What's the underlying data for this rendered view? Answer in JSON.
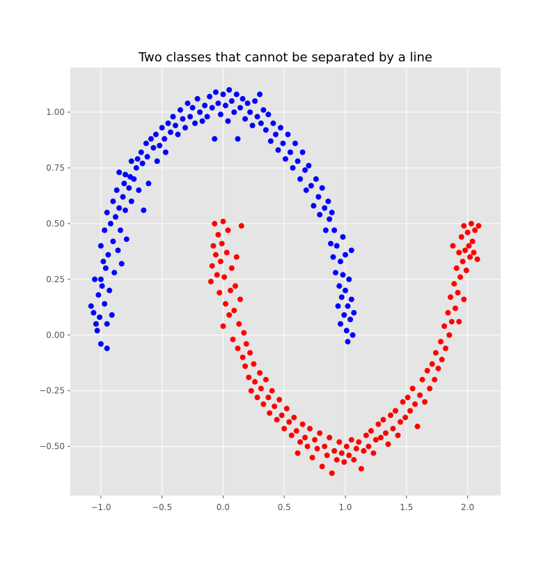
{
  "chart_data": {
    "type": "scatter",
    "title": "Two classes that cannot be separated by a line",
    "xlabel": "",
    "ylabel": "",
    "xlim": [
      -1.25,
      2.27
    ],
    "ylim": [
      -0.72,
      1.2
    ],
    "xticks": [
      -1.0,
      -0.5,
      0.0,
      0.5,
      1.0,
      1.5,
      2.0
    ],
    "xtick_labels": [
      "−1.0",
      "−0.5",
      "0.0",
      "0.5",
      "1.0",
      "1.5",
      "2.0"
    ],
    "yticks": [
      -0.5,
      -0.25,
      0.0,
      0.25,
      0.5,
      0.75,
      1.0
    ],
    "ytick_labels": [
      "−0.50",
      "−0.25",
      "0.00",
      "0.25",
      "0.50",
      "0.75",
      "1.00"
    ],
    "grid": true,
    "style": "ggplot",
    "legend": "none",
    "series": [
      {
        "color": "#0000ff",
        "points": [
          [
            -1.08,
            0.13
          ],
          [
            -1.06,
            0.1
          ],
          [
            -1.05,
            0.25
          ],
          [
            -1.04,
            0.05
          ],
          [
            -1.03,
            0.02
          ],
          [
            -1.02,
            0.18
          ],
          [
            -1.01,
            0.08
          ],
          [
            -1.0,
            0.4
          ],
          [
            -1.0,
            0.25
          ],
          [
            -1.0,
            -0.04
          ],
          [
            -0.99,
            0.22
          ],
          [
            -0.98,
            0.33
          ],
          [
            -0.97,
            0.47
          ],
          [
            -0.97,
            0.14
          ],
          [
            -0.96,
            0.3
          ],
          [
            -0.95,
            0.55
          ],
          [
            -0.95,
            0.05
          ],
          [
            -0.95,
            -0.06
          ],
          [
            -0.94,
            0.36
          ],
          [
            -0.93,
            0.2
          ],
          [
            -0.92,
            0.5
          ],
          [
            -0.91,
            0.09
          ],
          [
            -0.9,
            0.6
          ],
          [
            -0.9,
            0.42
          ],
          [
            -0.89,
            0.28
          ],
          [
            -0.88,
            0.53
          ],
          [
            -0.87,
            0.65
          ],
          [
            -0.86,
            0.38
          ],
          [
            -0.85,
            0.73
          ],
          [
            -0.85,
            0.57
          ],
          [
            -0.84,
            0.47
          ],
          [
            -0.83,
            0.32
          ],
          [
            -0.82,
            0.62
          ],
          [
            -0.81,
            0.68
          ],
          [
            -0.8,
            0.72
          ],
          [
            -0.8,
            0.56
          ],
          [
            -0.79,
            0.43
          ],
          [
            -0.77,
            0.66
          ],
          [
            -0.76,
            0.71
          ],
          [
            -0.75,
            0.78
          ],
          [
            -0.75,
            0.6
          ],
          [
            -0.73,
            0.7
          ],
          [
            -0.71,
            0.75
          ],
          [
            -0.7,
            0.79
          ],
          [
            -0.69,
            0.65
          ],
          [
            -0.67,
            0.82
          ],
          [
            -0.66,
            0.77
          ],
          [
            -0.65,
            0.56
          ],
          [
            -0.63,
            0.86
          ],
          [
            -0.62,
            0.8
          ],
          [
            -0.61,
            0.68
          ],
          [
            -0.59,
            0.88
          ],
          [
            -0.57,
            0.84
          ],
          [
            -0.55,
            0.9
          ],
          [
            -0.54,
            0.78
          ],
          [
            -0.52,
            0.85
          ],
          [
            -0.5,
            0.93
          ],
          [
            -0.48,
            0.88
          ],
          [
            -0.47,
            0.82
          ],
          [
            -0.45,
            0.95
          ],
          [
            -0.43,
            0.91
          ],
          [
            -0.41,
            0.98
          ],
          [
            -0.39,
            0.94
          ],
          [
            -0.37,
            0.9
          ],
          [
            -0.35,
            1.01
          ],
          [
            -0.33,
            0.97
          ],
          [
            -0.31,
            0.93
          ],
          [
            -0.29,
            1.04
          ],
          [
            -0.27,
            0.98
          ],
          [
            -0.25,
            1.02
          ],
          [
            -0.23,
            0.95
          ],
          [
            -0.21,
            1.06
          ],
          [
            -0.19,
            1.0
          ],
          [
            -0.17,
            0.96
          ],
          [
            -0.15,
            1.03
          ],
          [
            -0.13,
            0.98
          ],
          [
            -0.11,
            1.07
          ],
          [
            -0.09,
            1.02
          ],
          [
            -0.07,
            0.88
          ],
          [
            -0.06,
            1.09
          ],
          [
            -0.04,
            1.04
          ],
          [
            -0.02,
            0.99
          ],
          [
            0.0,
            1.08
          ],
          [
            0.02,
            1.03
          ],
          [
            0.04,
            0.96
          ],
          [
            0.05,
            1.1
          ],
          [
            0.07,
            1.05
          ],
          [
            0.09,
            1.0
          ],
          [
            0.11,
            1.08
          ],
          [
            0.12,
            0.88
          ],
          [
            0.14,
            1.02
          ],
          [
            0.16,
            1.06
          ],
          [
            0.18,
            0.97
          ],
          [
            0.2,
            1.04
          ],
          [
            0.22,
            1.0
          ],
          [
            0.24,
            0.94
          ],
          [
            0.26,
            1.05
          ],
          [
            0.28,
            0.98
          ],
          [
            0.3,
            1.08
          ],
          [
            0.31,
            0.95
          ],
          [
            0.33,
            1.01
          ],
          [
            0.35,
            0.92
          ],
          [
            0.37,
            0.99
          ],
          [
            0.39,
            0.87
          ],
          [
            0.41,
            0.95
          ],
          [
            0.43,
            0.9
          ],
          [
            0.45,
            0.83
          ],
          [
            0.47,
            0.93
          ],
          [
            0.49,
            0.86
          ],
          [
            0.51,
            0.79
          ],
          [
            0.53,
            0.9
          ],
          [
            0.55,
            0.82
          ],
          [
            0.57,
            0.75
          ],
          [
            0.59,
            0.86
          ],
          [
            0.61,
            0.78
          ],
          [
            0.63,
            0.7
          ],
          [
            0.65,
            0.82
          ],
          [
            0.67,
            0.74
          ],
          [
            0.68,
            0.65
          ],
          [
            0.7,
            0.76
          ],
          [
            0.72,
            0.67
          ],
          [
            0.74,
            0.58
          ],
          [
            0.76,
            0.7
          ],
          [
            0.78,
            0.62
          ],
          [
            0.79,
            0.54
          ],
          [
            0.81,
            0.66
          ],
          [
            0.83,
            0.57
          ],
          [
            0.84,
            0.47
          ],
          [
            0.86,
            0.6
          ],
          [
            0.87,
            0.52
          ],
          [
            0.88,
            0.41
          ],
          [
            0.89,
            0.55
          ],
          [
            0.9,
            0.35
          ],
          [
            0.91,
            0.47
          ],
          [
            0.92,
            0.28
          ],
          [
            0.93,
            0.4
          ],
          [
            0.94,
            0.13
          ],
          [
            0.95,
            0.22
          ],
          [
            0.96,
            0.33
          ],
          [
            0.96,
            0.05
          ],
          [
            0.97,
            0.17
          ],
          [
            0.98,
            0.27
          ],
          [
            0.98,
            0.44
          ],
          [
            0.99,
            0.09
          ],
          [
            1.0,
            0.2
          ],
          [
            1.0,
            0.36
          ],
          [
            1.01,
            0.02
          ],
          [
            1.02,
            0.13
          ],
          [
            1.02,
            -0.03
          ],
          [
            1.03,
            0.25
          ],
          [
            1.04,
            0.07
          ],
          [
            1.05,
            0.16
          ],
          [
            1.05,
            0.38
          ],
          [
            1.06,
            0.0
          ],
          [
            1.07,
            0.1
          ]
        ]
      },
      {
        "color": "#ff0000",
        "points": [
          [
            -0.1,
            0.24
          ],
          [
            -0.09,
            0.31
          ],
          [
            -0.08,
            0.4
          ],
          [
            -0.07,
            0.5
          ],
          [
            -0.06,
            0.36
          ],
          [
            -0.05,
            0.27
          ],
          [
            -0.04,
            0.45
          ],
          [
            -0.03,
            0.19
          ],
          [
            -0.02,
            0.33
          ],
          [
            -0.01,
            0.41
          ],
          [
            0.0,
            0.04
          ],
          [
            0.0,
            0.51
          ],
          [
            0.01,
            0.26
          ],
          [
            0.02,
            0.14
          ],
          [
            0.03,
            0.37
          ],
          [
            0.04,
            0.47
          ],
          [
            0.05,
            0.09
          ],
          [
            0.06,
            0.2
          ],
          [
            0.07,
            0.3
          ],
          [
            0.08,
            -0.02
          ],
          [
            0.09,
            0.11
          ],
          [
            0.1,
            0.22
          ],
          [
            0.11,
            0.35
          ],
          [
            0.12,
            -0.06
          ],
          [
            0.13,
            0.05
          ],
          [
            0.14,
            0.16
          ],
          [
            0.15,
            0.49
          ],
          [
            0.16,
            -0.1
          ],
          [
            0.17,
            0.01
          ],
          [
            0.18,
            -0.14
          ],
          [
            0.19,
            -0.04
          ],
          [
            0.21,
            -0.19
          ],
          [
            0.22,
            -0.08
          ],
          [
            0.23,
            -0.25
          ],
          [
            0.25,
            -0.13
          ],
          [
            0.26,
            -0.21
          ],
          [
            0.28,
            -0.28
          ],
          [
            0.3,
            -0.17
          ],
          [
            0.31,
            -0.24
          ],
          [
            0.33,
            -0.31
          ],
          [
            0.35,
            -0.2
          ],
          [
            0.37,
            -0.28
          ],
          [
            0.38,
            -0.35
          ],
          [
            0.4,
            -0.25
          ],
          [
            0.42,
            -0.32
          ],
          [
            0.44,
            -0.38
          ],
          [
            0.46,
            -0.29
          ],
          [
            0.48,
            -0.36
          ],
          [
            0.5,
            -0.42
          ],
          [
            0.52,
            -0.33
          ],
          [
            0.54,
            -0.39
          ],
          [
            0.56,
            -0.45
          ],
          [
            0.58,
            -0.37
          ],
          [
            0.6,
            -0.43
          ],
          [
            0.61,
            -0.53
          ],
          [
            0.63,
            -0.48
          ],
          [
            0.65,
            -0.4
          ],
          [
            0.67,
            -0.46
          ],
          [
            0.69,
            -0.5
          ],
          [
            0.71,
            -0.42
          ],
          [
            0.73,
            -0.55
          ],
          [
            0.75,
            -0.47
          ],
          [
            0.77,
            -0.51
          ],
          [
            0.79,
            -0.44
          ],
          [
            0.81,
            -0.59
          ],
          [
            0.83,
            -0.5
          ],
          [
            0.85,
            -0.54
          ],
          [
            0.87,
            -0.46
          ],
          [
            0.89,
            -0.62
          ],
          [
            0.91,
            -0.52
          ],
          [
            0.93,
            -0.56
          ],
          [
            0.95,
            -0.48
          ],
          [
            0.97,
            -0.53
          ],
          [
            0.99,
            -0.57
          ],
          [
            1.01,
            -0.5
          ],
          [
            1.03,
            -0.54
          ],
          [
            1.05,
            -0.47
          ],
          [
            1.07,
            -0.56
          ],
          [
            1.09,
            -0.51
          ],
          [
            1.11,
            -0.48
          ],
          [
            1.13,
            -0.6
          ],
          [
            1.15,
            -0.52
          ],
          [
            1.17,
            -0.45
          ],
          [
            1.19,
            -0.5
          ],
          [
            1.21,
            -0.43
          ],
          [
            1.23,
            -0.53
          ],
          [
            1.25,
            -0.47
          ],
          [
            1.27,
            -0.4
          ],
          [
            1.29,
            -0.46
          ],
          [
            1.31,
            -0.38
          ],
          [
            1.33,
            -0.44
          ],
          [
            1.35,
            -0.49
          ],
          [
            1.37,
            -0.36
          ],
          [
            1.39,
            -0.42
          ],
          [
            1.41,
            -0.34
          ],
          [
            1.43,
            -0.45
          ],
          [
            1.45,
            -0.39
          ],
          [
            1.47,
            -0.3
          ],
          [
            1.49,
            -0.37
          ],
          [
            1.51,
            -0.28
          ],
          [
            1.53,
            -0.34
          ],
          [
            1.55,
            -0.24
          ],
          [
            1.57,
            -0.31
          ],
          [
            1.59,
            -0.41
          ],
          [
            1.61,
            -0.27
          ],
          [
            1.63,
            -0.2
          ],
          [
            1.65,
            -0.3
          ],
          [
            1.67,
            -0.16
          ],
          [
            1.69,
            -0.24
          ],
          [
            1.71,
            -0.13
          ],
          [
            1.73,
            -0.2
          ],
          [
            1.74,
            -0.08
          ],
          [
            1.76,
            -0.15
          ],
          [
            1.78,
            -0.03
          ],
          [
            1.79,
            -0.11
          ],
          [
            1.81,
            0.04
          ],
          [
            1.82,
            -0.06
          ],
          [
            1.84,
            0.1
          ],
          [
            1.85,
            0.0
          ],
          [
            1.86,
            0.17
          ],
          [
            1.87,
            0.06
          ],
          [
            1.89,
            0.23
          ],
          [
            1.9,
            0.12
          ],
          [
            1.91,
            0.3
          ],
          [
            1.92,
            0.19
          ],
          [
            1.93,
            0.37
          ],
          [
            1.94,
            0.26
          ],
          [
            1.95,
            0.44
          ],
          [
            1.96,
            0.33
          ],
          [
            1.97,
            0.49
          ],
          [
            1.98,
            0.38
          ],
          [
            1.99,
            0.29
          ],
          [
            2.0,
            0.46
          ],
          [
            2.01,
            0.4
          ],
          [
            2.02,
            0.35
          ],
          [
            2.03,
            0.5
          ],
          [
            2.04,
            0.42
          ],
          [
            2.05,
            0.37
          ],
          [
            2.06,
            0.47
          ],
          [
            2.08,
            0.34
          ],
          [
            2.09,
            0.49
          ],
          [
            1.88,
            0.4
          ],
          [
            1.93,
            0.06
          ],
          [
            1.97,
            0.16
          ]
        ]
      }
    ]
  }
}
